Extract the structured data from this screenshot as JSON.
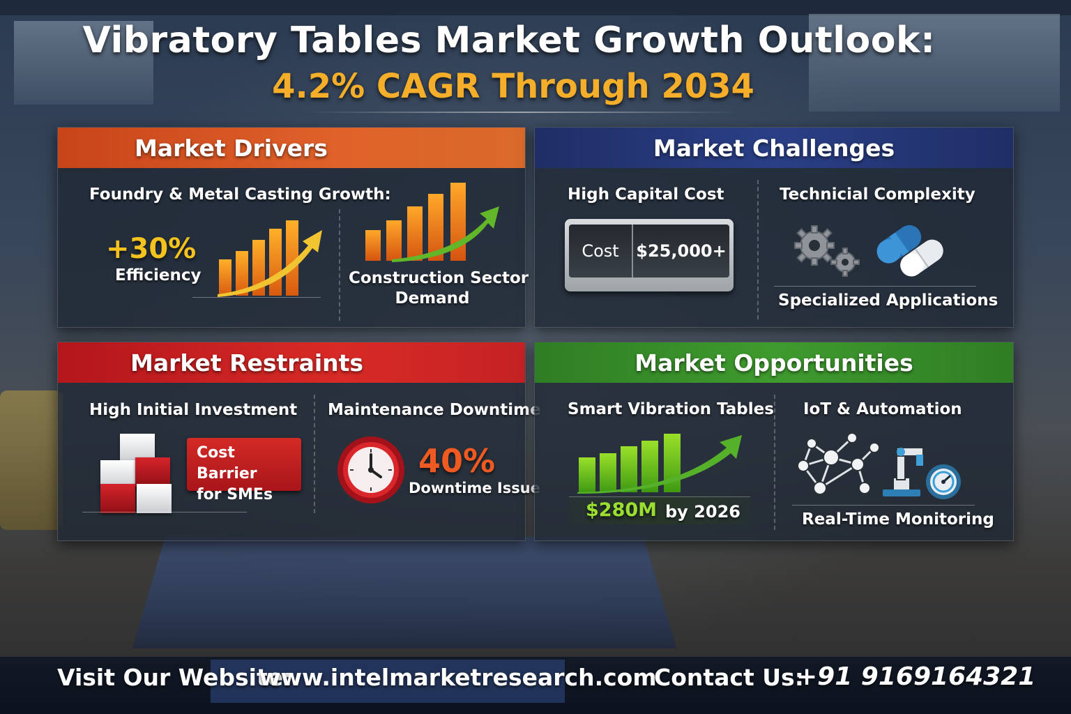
{
  "header": {
    "title": "Vibratory Tables Market Growth Outlook:",
    "subtitle": "4.2% CAGR Through 2034"
  },
  "drivers": {
    "heading": "Market Drivers",
    "item1_label": "Foundry & Metal Casting Growth:",
    "item1_stat": "+30%",
    "item1_stat_label": "Efficiency",
    "item2_label_line1": "Construction Sector",
    "item2_label_line2": "Demand"
  },
  "challenges": {
    "heading": "Market Challenges",
    "col1_label": "High Capital Cost",
    "cost_key": "Cost",
    "cost_value": "$25,000+",
    "col2_label": "Technicial Complexity",
    "col2_caption": "Specialized Applications"
  },
  "restraints": {
    "heading": "Market Restraints",
    "col1_label": "High Initial Investment",
    "barrier_line1": "Cost Barrier",
    "barrier_line2": "for SMEs",
    "col2_label": "Maintenance Downtime",
    "stat": "40%",
    "stat_label": "Downtime Issue"
  },
  "opportunities": {
    "heading": "Market Opportunities",
    "col1_label": "Smart Vibration Tables",
    "value": "$280M",
    "value_suffix": "by 2026",
    "col2_label": "IoT & Automation",
    "col2_caption": "Real-Time Monitoring"
  },
  "footer": {
    "website_label": "Visit Our Website:",
    "website": "www.intelmarketresearch.com",
    "contact_label": "Contact Us:",
    "phone": "+91 9169164321"
  },
  "colors": {
    "accent_gold": "#f4ae2a",
    "drivers": "#e0622a",
    "challenges": "#2a3f86",
    "restraints": "#d82a26",
    "opportunities": "#3f9b2e"
  },
  "icons": [
    "bar-growth-arrow-icon",
    "gears-icon",
    "capsule-icon",
    "blocks-icon",
    "clock-icon",
    "network-icon",
    "robot-arm-icon",
    "gauge-icon"
  ]
}
